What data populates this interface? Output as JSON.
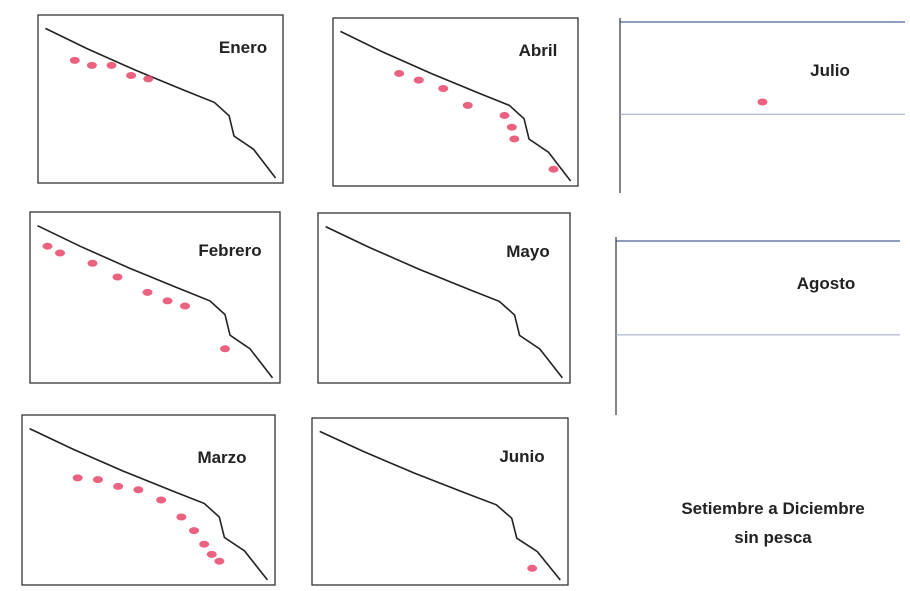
{
  "panels": [
    {
      "label": "Enero"
    },
    {
      "label": "Abril"
    },
    {
      "label": "Julio"
    },
    {
      "label": "Febrero"
    },
    {
      "label": "Mayo"
    },
    {
      "label": "Agosto"
    },
    {
      "label": "Marzo"
    },
    {
      "label": "Junio"
    }
  ],
  "note": {
    "lines": [
      "Setiembre a Diciembre",
      "sin pesca"
    ]
  }
}
